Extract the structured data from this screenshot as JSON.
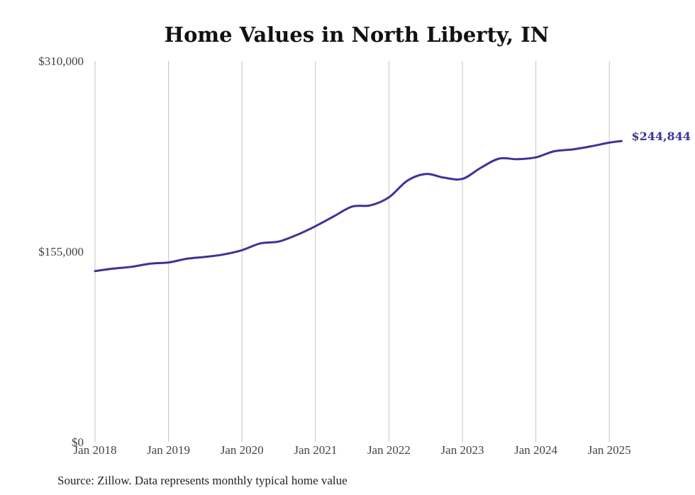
{
  "chart_data": {
    "type": "line",
    "title": "Home Values in North Liberty, IN",
    "source": "Source: Zillow. Data represents monthly typical home value",
    "xlabel": "",
    "ylabel": "",
    "ylim": [
      0,
      310000
    ],
    "y_ticks": [
      {
        "value": 0,
        "label": "$0"
      },
      {
        "value": 155000,
        "label": "$155,000"
      },
      {
        "value": 310000,
        "label": "$310,000"
      }
    ],
    "x_ticks": [
      {
        "value": "2018-01",
        "label": "Jan 2018"
      },
      {
        "value": "2019-01",
        "label": "Jan 2019"
      },
      {
        "value": "2020-01",
        "label": "Jan 2020"
      },
      {
        "value": "2021-01",
        "label": "Jan 2021"
      },
      {
        "value": "2022-01",
        "label": "Jan 2022"
      },
      {
        "value": "2023-01",
        "label": "Jan 2023"
      },
      {
        "value": "2024-01",
        "label": "Jan 2024"
      },
      {
        "value": "2025-01",
        "label": "Jan 2025"
      }
    ],
    "grid": "vertical",
    "line_color": "#3b3596",
    "end_label": "$244,844",
    "series": [
      {
        "x": [
          "2018-01",
          "2018-04",
          "2018-07",
          "2018-10",
          "2019-01",
          "2019-04",
          "2019-07",
          "2019-10",
          "2020-01",
          "2020-04",
          "2020-07",
          "2020-10",
          "2021-01",
          "2021-04",
          "2021-07",
          "2021-10",
          "2022-01",
          "2022-04",
          "2022-07",
          "2022-10",
          "2023-01",
          "2023-04",
          "2023-07",
          "2023-10",
          "2024-01",
          "2024-04",
          "2024-07",
          "2024-10",
          "2025-01",
          "2025-03"
        ],
        "values": [
          139000,
          141000,
          142500,
          145000,
          146000,
          149000,
          150500,
          152500,
          156000,
          161500,
          163000,
          168500,
          175500,
          183500,
          191500,
          192500,
          199000,
          212500,
          218000,
          215000,
          214000,
          223000,
          230500,
          230000,
          231500,
          236500,
          238000,
          240500,
          243500,
          244844
        ]
      }
    ]
  }
}
